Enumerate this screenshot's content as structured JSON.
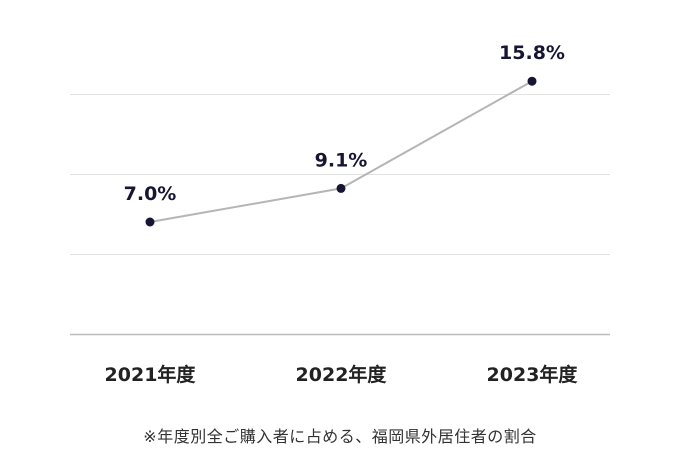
{
  "chart_data": {
    "type": "line",
    "categories": [
      "2021年度",
      "2022年度",
      "2023年度"
    ],
    "values": [
      7.0,
      9.1,
      15.8
    ],
    "value_labels": [
      "7.0%",
      "9.1%",
      "15.8%"
    ],
    "unit": "%",
    "ylim": [
      0,
      20
    ],
    "grid": true,
    "legend": "none",
    "colors": {
      "line": "#b5b5b5",
      "point": "#161633",
      "grid": "#e2e2e2",
      "axis": "#bdbdbd"
    }
  },
  "footnote": "※年度別全ご購入者に占める、福岡県外居住者の割合"
}
